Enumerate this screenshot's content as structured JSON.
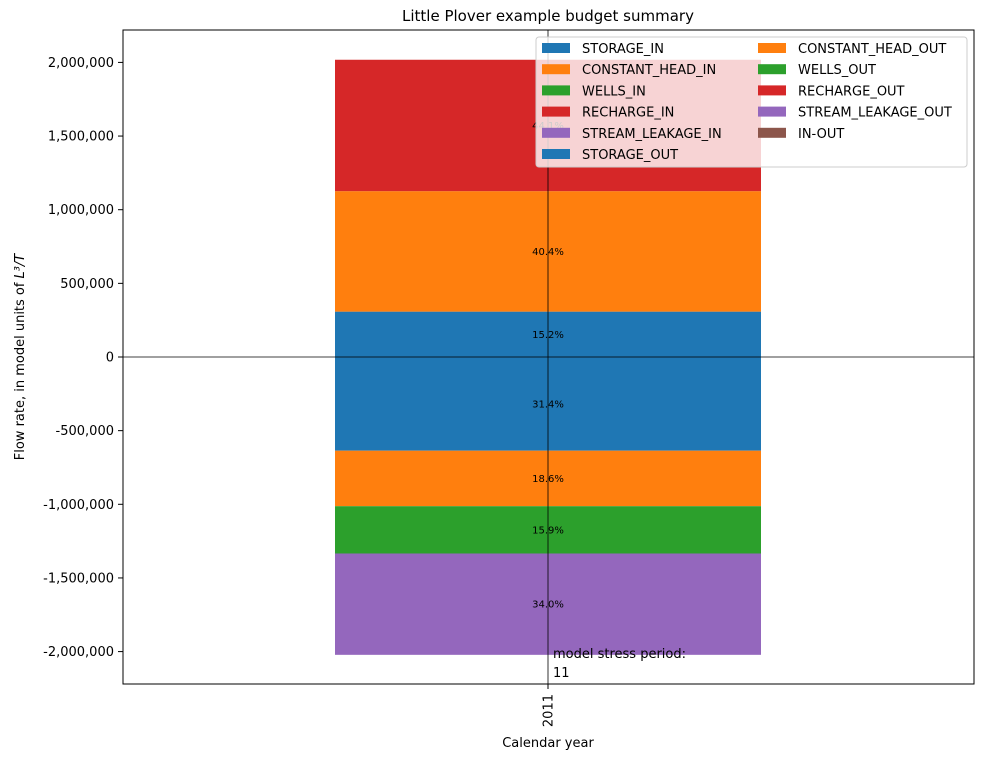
{
  "chart_data": {
    "type": "bar",
    "stacked": true,
    "title": "Little Plover example budget summary",
    "xlabel": "Calendar year",
    "ylabel": "Flow rate, in model units of",
    "ylabel_math": "L³/T",
    "categories": [
      "2011"
    ],
    "ylim": [
      -2220000,
      2220000
    ],
    "yticks": [
      -2000000,
      -1500000,
      -1000000,
      -500000,
      0,
      500000,
      1000000,
      1500000,
      2000000
    ],
    "ytick_labels": [
      "-2,000,000",
      "-1,500,000",
      "-1,000,000",
      "-500,000",
      "0",
      "500,000",
      "1,000,000",
      "1,500,000",
      "2,000,000"
    ],
    "annotation": {
      "line1": "model stress period:",
      "line2": "11"
    },
    "legend": {
      "placement": "top-right",
      "columns": 2
    },
    "series": [
      {
        "name": "STORAGE_IN",
        "values": [
          308000
        ],
        "label": "15.2%",
        "color": "#1f77b4"
      },
      {
        "name": "CONSTANT_HEAD_IN",
        "values": [
          818000
        ],
        "label": "40.4%",
        "color": "#ff7f0e"
      },
      {
        "name": "WELLS_IN",
        "values": [
          0
        ],
        "label": "",
        "color": "#2ca02c"
      },
      {
        "name": "RECHARGE_IN",
        "values": [
          892000
        ],
        "label": "44.1%",
        "color": "#d62728"
      },
      {
        "name": "STREAM_LEAKAGE_IN",
        "values": [
          0
        ],
        "label": "",
        "color": "#9467bd"
      },
      {
        "name": "STORAGE_OUT",
        "values": [
          -636000
        ],
        "label": "31.4%",
        "color": "#1f77b4"
      },
      {
        "name": "CONSTANT_HEAD_OUT",
        "values": [
          -377000
        ],
        "label": "18.6%",
        "color": "#ff7f0e"
      },
      {
        "name": "WELLS_OUT",
        "values": [
          -321000
        ],
        "label": "15.9%",
        "color": "#2ca02c"
      },
      {
        "name": "RECHARGE_OUT",
        "values": [
          0
        ],
        "label": "",
        "color": "#d62728"
      },
      {
        "name": "STREAM_LEAKAGE_OUT",
        "values": [
          -688000
        ],
        "label": "34.0%",
        "color": "#9467bd"
      },
      {
        "name": "IN-OUT",
        "values": [
          0
        ],
        "label": "",
        "color": "#8c564b"
      }
    ]
  }
}
